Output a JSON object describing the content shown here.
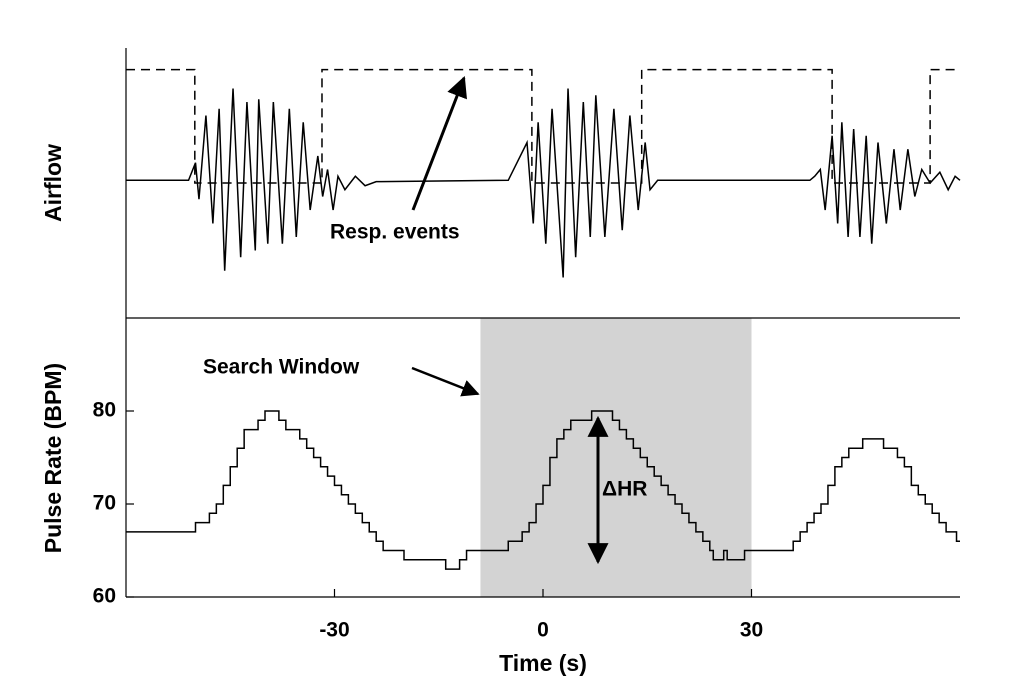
{
  "chart_data": [
    {
      "type": "line",
      "ylabel": "Airflow",
      "xlim": [
        -60,
        60
      ],
      "ylim": [
        -1,
        1
      ],
      "annotations": [
        "Resp. events"
      ],
      "series": [
        {
          "color": "#000000",
          "linestyle": "solid",
          "drawstyle": "default",
          "x": [
            -60,
            -51,
            -50,
            -49.5,
            -48.5,
            -47.5,
            -46.6,
            -45.8,
            -44.6,
            -43.5,
            -42.6,
            -41.4,
            -40.9,
            -39.6,
            -38.8,
            -37.5,
            -36.5,
            -35.5,
            -34.5,
            -33.5,
            -32.4,
            -31.7,
            -31,
            -30.2,
            -29.5,
            -28.5,
            -27,
            -25.6,
            -24,
            -5,
            -2.3,
            -1.4,
            -0.7,
            0.4,
            1.3,
            2.9,
            3.6,
            4.7,
            5.8,
            6.8,
            7.6,
            8.9,
            10.2,
            11.4,
            12.5,
            13.7,
            14.7,
            15.4,
            16.5,
            38.4,
            39.1,
            39.9,
            40.6,
            41.6,
            42.4,
            43,
            43.9,
            44.7,
            45.6,
            46.5,
            47.3,
            48.2,
            49.4,
            50.5,
            51.4,
            52.5,
            53.5,
            54.5,
            55.7,
            57.1,
            58.3,
            59.3,
            60
          ],
          "values": [
            0.02,
            0.02,
            0.15,
            -0.12,
            0.5,
            -0.3,
            0.55,
            -0.65,
            0.7,
            -0.55,
            0.6,
            -0.5,
            0.62,
            -0.45,
            0.6,
            -0.45,
            0.55,
            -0.4,
            0.45,
            -0.2,
            0.2,
            -0.1,
            0.1,
            -0.2,
            0.05,
            -0.05,
            0.05,
            -0.02,
            0.01,
            0.02,
            0.3,
            -0.3,
            0.45,
            -0.45,
            0.55,
            -0.7,
            0.7,
            -0.55,
            0.6,
            -0.4,
            0.65,
            -0.4,
            0.55,
            -0.35,
            0.5,
            -0.2,
            0.3,
            -0.05,
            0.02,
            0.02,
            0.05,
            0.1,
            -0.2,
            0.35,
            -0.3,
            0.45,
            -0.4,
            0.4,
            -0.4,
            0.35,
            -0.45,
            0.3,
            -0.3,
            0.25,
            -0.2,
            0.25,
            -0.1,
            0.1,
            0,
            0.08,
            -0.05,
            0.05,
            0.02
          ]
        },
        {
          "color": "#000000",
          "linestyle": "dashed",
          "drawstyle": "steps-post",
          "x": [
            -60,
            -50.1,
            -31.8,
            -1.6,
            14.2,
            41.6,
            55.7
          ],
          "values": [
            0.84,
            0,
            0.84,
            0,
            0.84,
            0,
            0.84
          ]
        }
      ]
    },
    {
      "type": "line",
      "ylabel": "Pulse Rate (BPM)",
      "xlabel": "Time (s)",
      "xlim": [
        -60,
        60
      ],
      "ylim": [
        60,
        90
      ],
      "xticks": [
        -30,
        0,
        30
      ],
      "yticks": [
        60,
        70,
        80
      ],
      "shaded_region": [
        -9,
        30
      ],
      "shaded_color": "#d3d3d3",
      "annotations": [
        "Search Window",
        "ΔHR"
      ],
      "series": [
        {
          "color": "#000000",
          "linestyle": "solid",
          "drawstyle": "steps-post",
          "x": [
            -60,
            -50,
            -48,
            -47,
            -46,
            -45,
            -44,
            -43,
            -41,
            -40,
            -38,
            -37,
            -35,
            -34,
            -33,
            -32,
            -31,
            -30,
            -29,
            -28,
            -27,
            -26,
            -25,
            -24,
            -23,
            -20,
            -14,
            -12,
            -11,
            -5,
            -3,
            -2,
            -1,
            0,
            1,
            2,
            3,
            4,
            7,
            10,
            11,
            12,
            13,
            14,
            15,
            16,
            17,
            18,
            19,
            20,
            21,
            22,
            23,
            24,
            24.5,
            26,
            26.5,
            29,
            36,
            37,
            38,
            39,
            40,
            41,
            42,
            43,
            44,
            46,
            49,
            51,
            52,
            53,
            54,
            55,
            56,
            57,
            58,
            59.5
          ],
          "values": [
            67,
            68,
            69,
            70,
            72,
            74,
            76,
            78,
            79,
            80,
            79,
            78,
            77,
            76,
            75,
            74,
            73,
            72,
            71,
            70,
            69,
            68,
            67,
            66,
            65,
            64,
            63,
            64,
            65,
            66,
            67,
            68,
            70,
            72,
            75,
            77,
            78,
            79,
            80,
            79,
            78,
            77,
            76,
            75,
            74,
            73,
            72,
            71,
            70,
            69,
            68,
            67,
            66,
            65,
            64,
            65,
            64,
            65,
            66,
            67,
            68,
            69,
            70,
            72,
            74,
            75,
            76,
            77,
            76,
            75,
            74,
            72,
            71,
            70,
            69,
            68,
            67,
            66
          ]
        }
      ]
    }
  ]
}
